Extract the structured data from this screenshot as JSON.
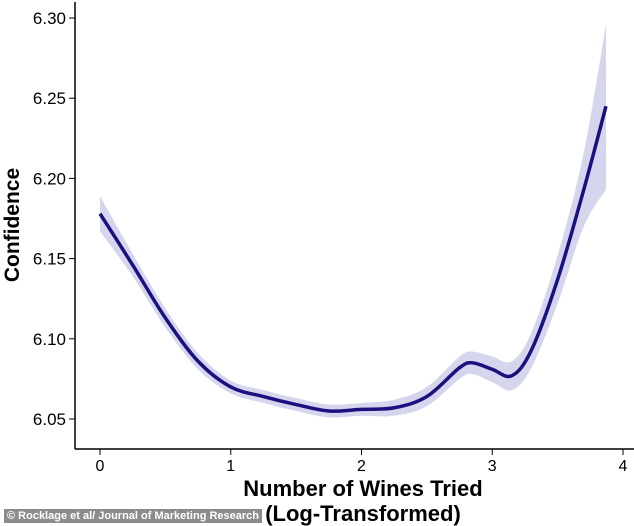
{
  "chart_data": {
    "type": "line",
    "title": "",
    "xlabel": "Number of Wines Tried",
    "xlabel2": "(Log-Transformed)",
    "ylabel": "Confidence",
    "xlim": [
      -0.2,
      4.06
    ],
    "ylim": [
      6.035,
      6.31
    ],
    "xticks": [
      "0",
      "1",
      "2",
      "3",
      "4"
    ],
    "yticks": [
      "6.05",
      "6.10",
      "6.15",
      "6.20",
      "6.25",
      "6.30"
    ],
    "grid": false,
    "line_color": "#1a117f",
    "band_color": "#d5d6ee",
    "x": [
      0,
      0.25,
      0.5,
      0.75,
      1,
      1.25,
      1.5,
      1.75,
      2,
      2.25,
      2.5,
      2.75,
      2.85,
      3,
      3.15,
      3.3,
      3.5,
      3.7,
      3.87
    ],
    "y": [
      6.178,
      6.146,
      6.113,
      6.086,
      6.07,
      6.064,
      6.059,
      6.055,
      6.056,
      6.057,
      6.064,
      6.082,
      6.085,
      6.081,
      6.077,
      6.093,
      6.137,
      6.193,
      6.245
    ],
    "lower": [
      6.167,
      6.139,
      6.107,
      6.081,
      6.066,
      6.06,
      6.055,
      6.051,
      6.052,
      6.052,
      6.058,
      6.075,
      6.078,
      6.073,
      6.068,
      6.082,
      6.122,
      6.17,
      6.193
    ],
    "upper": [
      6.189,
      6.153,
      6.119,
      6.091,
      6.074,
      6.068,
      6.063,
      6.059,
      6.06,
      6.062,
      6.07,
      6.089,
      6.092,
      6.089,
      6.086,
      6.104,
      6.152,
      6.216,
      6.296
    ]
  },
  "credit": "© Rocklage et al/ Journal of Marketing Research"
}
